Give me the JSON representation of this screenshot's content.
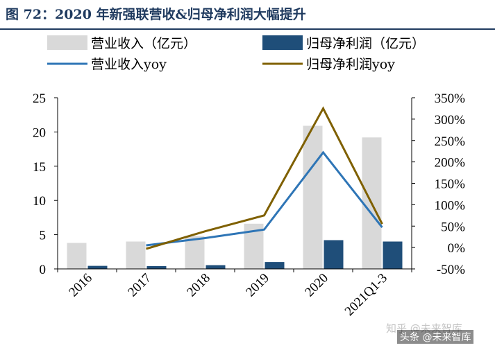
{
  "figure": {
    "title": "图 72：2020 年新强联营收&归母净利润大幅提升"
  },
  "watermarks": {
    "zhihu": "知乎 @未来智库",
    "toutiao": "头条 @未来智库"
  },
  "chart_data": {
    "type": "bar",
    "categories": [
      "2016",
      "2017",
      "2018",
      "2019",
      "2020",
      "2021Q1-3"
    ],
    "series": [
      {
        "name": "营业收入（亿元）",
        "type": "bar",
        "axis": "left",
        "color": "#d9d9d9",
        "values": [
          3.8,
          4.0,
          4.8,
          6.6,
          20.9,
          19.2
        ]
      },
      {
        "name": "归母净利润（亿元）",
        "type": "bar",
        "axis": "left",
        "color": "#1f4e79",
        "values": [
          0.45,
          0.4,
          0.55,
          1.0,
          4.2,
          4.0
        ]
      },
      {
        "name": "营业收入yoy",
        "type": "line",
        "axis": "right",
        "color": "#2e75b6",
        "values": [
          null,
          5,
          22,
          42,
          222,
          47
        ]
      },
      {
        "name": "归母净利润yoy",
        "type": "line",
        "axis": "right",
        "color": "#7f6000",
        "values": [
          null,
          -3,
          38,
          75,
          325,
          55
        ]
      }
    ],
    "y_left": {
      "min": 0,
      "max": 25,
      "ticks": [
        0,
        5,
        10,
        15,
        20,
        25
      ]
    },
    "y_right": {
      "min": -50,
      "max": 350,
      "ticks": [
        "-50%",
        "0%",
        "50%",
        "100%",
        "150%",
        "200%",
        "250%",
        "300%",
        "350%"
      ]
    },
    "legend_position": "top",
    "grid": false
  }
}
